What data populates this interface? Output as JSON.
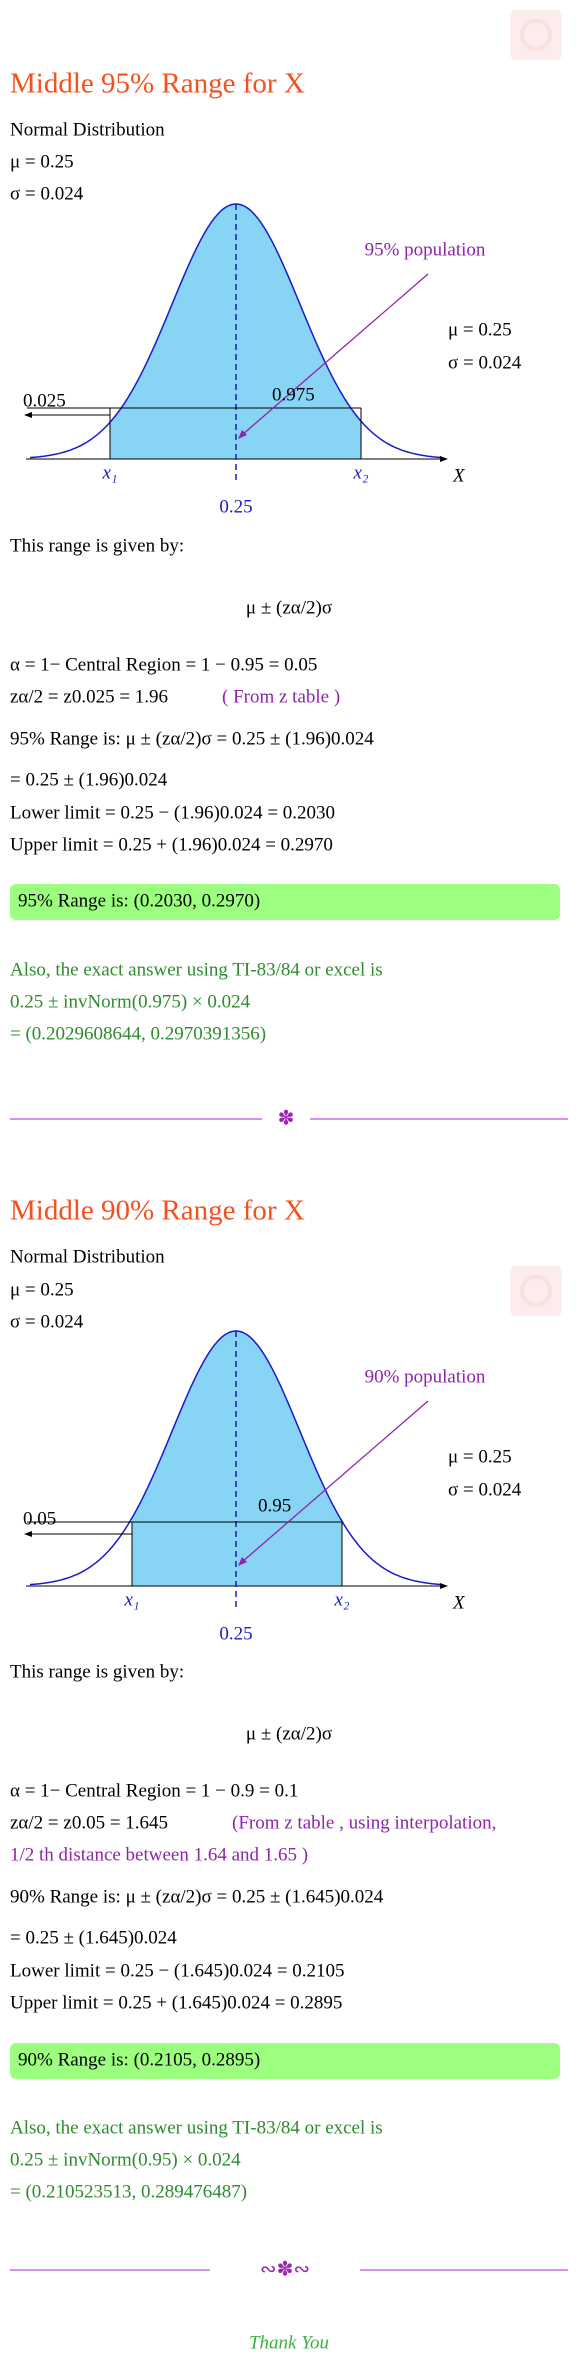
{
  "sections": [
    {
      "title": "Middle 95% Range for X",
      "distribution": [
        "Normal Distribution",
        "μ = 0.25",
        "σ = 0.024"
      ],
      "diagram": {
        "population": "95% population",
        "mu": "μ = 0.25",
        "sigma": "σ = 0.024",
        "tail": "0.025",
        "center_area": "0.975",
        "x1": "x₁",
        "x2": "x₂",
        "axis": "X",
        "mean": "0.25"
      },
      "intro": "This range is given by:",
      "formula": "μ ± (zα/2)σ",
      "alpha": "α = 1− Central Region = 1 − 0.95 = 0.05",
      "z": "zα/2 = z0.025 = 1.96",
      "z_note": [
        "( From z table )"
      ],
      "range_line": "95% Range is:  μ ± (zα/2)σ = 0.25 ± (1.96)0.024",
      "eq_line": "= 0.25 ± (1.96)0.024",
      "lower": "Lower limit = 0.25 − (1.96)0.024 = 0.2030",
      "upper": "Upper limit = 0.25 + (1.96)0.024 = 0.2970",
      "result": "95% Range is:  (0.2030, 0.2970)",
      "exact": [
        "Also, the exact answer using TI-83/84 or excel is",
        "0.25 ± invNorm(0.975) × 0.024",
        "= (0.2029608644, 0.2970391356)"
      ]
    },
    {
      "title": "Middle 90% Range for X",
      "distribution": [
        "Normal Distribution",
        "μ = 0.25",
        "σ = 0.024"
      ],
      "diagram": {
        "population": "90% population",
        "mu": "μ = 0.25",
        "sigma": "σ = 0.024",
        "tail": "0.05",
        "center_area": "0.95",
        "x1": "x₁",
        "x2": "x₂",
        "axis": "X",
        "mean": "0.25"
      },
      "intro": "This range is given by:",
      "formula": "μ ± (zα/2)σ",
      "alpha": "α = 1− Central Region = 1 − 0.9 = 0.1",
      "z": "zα/2 = z0.05 = 1.645",
      "z_note": [
        "(From z table , using interpolation,",
        "1/2 th distance between 1.64 and 1.65 )"
      ],
      "range_line": "90% Range is:  μ ± (zα/2)σ = 0.25 ± (1.645)0.024",
      "eq_line": "= 0.25 ± (1.645)0.024",
      "lower": "Lower limit = 0.25 − (1.645)0.024 = 0.2105",
      "upper": "Upper limit = 0.25 + (1.645)0.024 = 0.2895",
      "result": "90% Range is:  (0.2105, 0.2895)",
      "exact": [
        "Also, the exact answer using TI-83/84 or excel is",
        "0.25 ± invNorm(0.95) × 0.024",
        "= (0.210523513, 0.289476487)"
      ]
    }
  ],
  "footer": "Thank You"
}
